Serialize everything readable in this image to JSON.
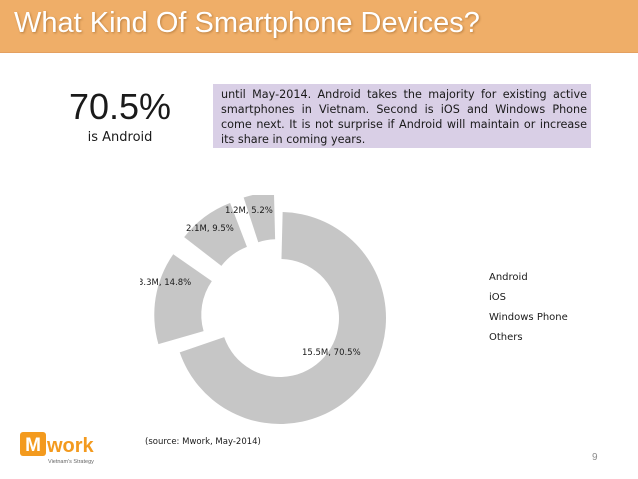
{
  "slide": {
    "title": "What Kind Of Smartphone Devices?",
    "big_stat": "70.5%",
    "stat_caption": "is Android",
    "note": "until May-2014. Android takes the majority for existing active smartphones in Vietnam. Second is iOS and Windows Phone come next. It is not surprise if Android will maintain or increase its share in coming years.",
    "source": "(source: Mwork, May-2014)",
    "page_number": "9",
    "logo_text": "work",
    "logo_letter": "M",
    "logo_tagline": "Vietnam's Strategy"
  },
  "colors": {
    "title_bar": "#efae68",
    "note_box": "#d9cfe6",
    "slice_fill": "#c6c6c6",
    "logo_orange": "#f39a1e"
  },
  "chart_data": {
    "type": "pie",
    "style": "donut",
    "exploded": true,
    "legend_position": "right",
    "categories": [
      "Android",
      "iOS",
      "Windows Phone",
      "Others"
    ],
    "values": [
      15.5,
      3.3,
      2.1,
      1.2
    ],
    "value_unit": "M",
    "percentages": [
      70.5,
      14.8,
      9.5,
      5.2
    ],
    "data_labels": [
      "15.5M, 70.5%",
      "3.3M, 14.8%",
      "2.1M, 9.5%",
      "1.2M, 5.2%"
    ],
    "title": "",
    "xlabel": "",
    "ylabel": ""
  }
}
